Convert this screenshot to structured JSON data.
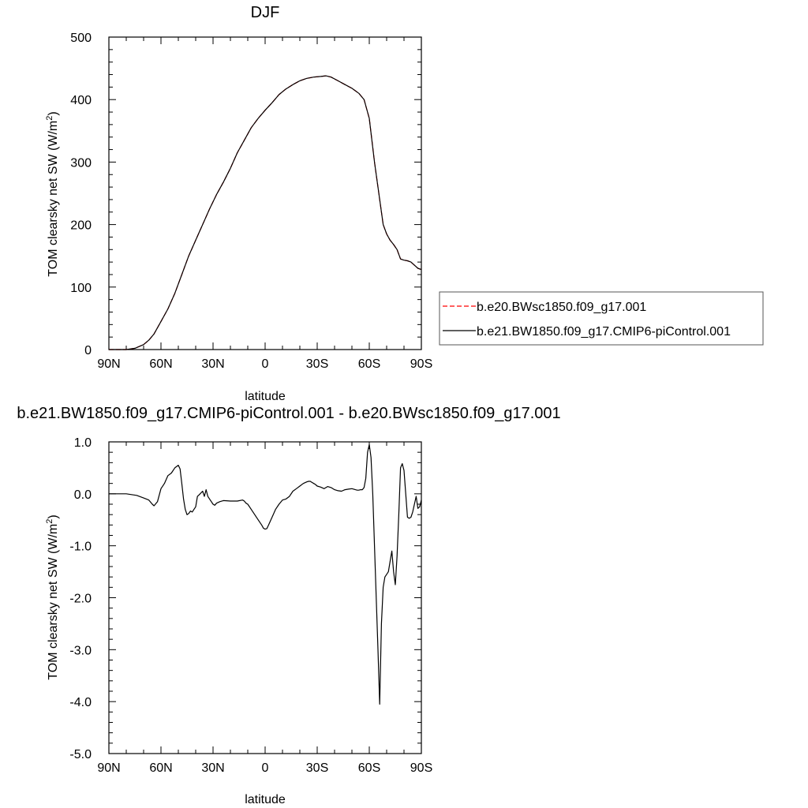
{
  "chart_data": [
    {
      "type": "line",
      "title": "DJF",
      "xlabel": "latitude",
      "ylabel": "TOM clearsky net SW (W/m",
      "ylabel_sup": "2",
      "ylabel_close": ")",
      "xlim": [
        90,
        -90
      ],
      "ylim": [
        0,
        500
      ],
      "x_ticks": [
        90,
        60,
        30,
        0,
        -30,
        -60,
        -90
      ],
      "x_tick_labels": [
        "90N",
        "60N",
        "30N",
        "0",
        "30S",
        "60S",
        "90S"
      ],
      "y_ticks": [
        0,
        100,
        200,
        300,
        400,
        500
      ],
      "y_tick_labels": [
        "0",
        "100",
        "200",
        "300",
        "400",
        "500"
      ],
      "legend_position": "right",
      "series": [
        {
          "name": "b.e20.BWsc1850.f09_g17.001",
          "color": "#ff0000",
          "dashed": true,
          "x": [
            90,
            80,
            75,
            70,
            67,
            64,
            60,
            56,
            52,
            48,
            44,
            40,
            36,
            32,
            28,
            24,
            20,
            16,
            12,
            8,
            4,
            0,
            -4,
            -8,
            -12,
            -16,
            -20,
            -24,
            -28,
            -32,
            -35,
            -38,
            -42,
            -46,
            -50,
            -54,
            -57,
            -60,
            -63,
            -66,
            -68,
            -70,
            -72,
            -74,
            -76,
            -78,
            -80,
            -82,
            -84,
            -86,
            -88,
            -90
          ],
          "y": [
            0,
            0,
            2,
            8,
            15,
            25,
            45,
            65,
            90,
            120,
            150,
            175,
            200,
            225,
            248,
            268,
            290,
            315,
            335,
            355,
            370,
            383,
            395,
            408,
            417,
            424,
            430,
            434,
            436,
            437,
            438,
            436,
            430,
            424,
            418,
            410,
            400,
            370,
            300,
            240,
            200,
            185,
            175,
            168,
            160,
            145,
            143,
            142,
            140,
            135,
            130,
            128
          ]
        },
        {
          "name": "b.e21.BW1850.f09_g17.CMIP6-piControl.001",
          "color": "#000000",
          "dashed": false,
          "x": [
            90,
            80,
            75,
            70,
            67,
            64,
            60,
            56,
            52,
            48,
            44,
            40,
            36,
            32,
            28,
            24,
            20,
            16,
            12,
            8,
            4,
            0,
            -4,
            -8,
            -12,
            -16,
            -20,
            -24,
            -28,
            -32,
            -35,
            -38,
            -42,
            -46,
            -50,
            -54,
            -57,
            -60,
            -63,
            -66,
            -68,
            -70,
            -72,
            -74,
            -76,
            -78,
            -80,
            -82,
            -84,
            -86,
            -88,
            -90
          ],
          "y": [
            0,
            0,
            2,
            8,
            15,
            25,
            45,
            65,
            90,
            120,
            150,
            175,
            200,
            225,
            248,
            268,
            290,
            315,
            335,
            355,
            370,
            383,
            395,
            408,
            417,
            424,
            430,
            434,
            436,
            437,
            438,
            436,
            430,
            424,
            418,
            410,
            400,
            370,
            300,
            240,
            200,
            185,
            175,
            168,
            160,
            145,
            143,
            142,
            140,
            135,
            130,
            128
          ]
        }
      ]
    },
    {
      "type": "line",
      "title": "b.e21.BW1850.f09_g17.CMIP6-piControl.001 - b.e20.BWsc1850.f09_g17.001",
      "xlabel": "latitude",
      "ylabel": "TOM clearsky net SW (W/m",
      "ylabel_sup": "2",
      "ylabel_close": ")",
      "xlim": [
        90,
        -90
      ],
      "ylim": [
        -5.0,
        1.0
      ],
      "x_ticks": [
        90,
        60,
        30,
        0,
        -30,
        -60,
        -90
      ],
      "x_tick_labels": [
        "90N",
        "60N",
        "30N",
        "0",
        "30S",
        "60S",
        "90S"
      ],
      "y_ticks": [
        1.0,
        0.0,
        -1.0,
        -2.0,
        -3.0,
        -4.0,
        -5.0
      ],
      "y_tick_labels": [
        "1.0",
        "0.0",
        "-1.0",
        "-2.0",
        "-3.0",
        "-4.0",
        "-5.0"
      ],
      "series": [
        {
          "color": "#000000",
          "x": [
            90,
            80,
            74,
            70,
            67,
            65,
            64,
            62,
            60,
            58,
            56,
            54,
            52,
            50,
            49,
            48,
            47,
            46,
            45,
            44,
            43,
            42,
            41,
            40,
            39,
            38,
            36,
            35,
            34,
            33,
            32,
            31,
            30,
            29,
            28,
            26,
            24,
            20,
            16,
            13,
            12,
            11,
            10,
            8,
            6,
            4,
            2,
            1,
            0,
            -1,
            -2,
            -4,
            -6,
            -8,
            -10,
            -12,
            -14,
            -16,
            -18,
            -20,
            -22,
            -24,
            -25,
            -26,
            -27,
            -28,
            -29,
            -30,
            -32,
            -34,
            -36,
            -38,
            -40,
            -42,
            -44,
            -46,
            -48,
            -50,
            -51,
            -52,
            -53,
            -54,
            -55,
            -56,
            -57,
            -58,
            -59,
            -60,
            -61,
            -62,
            -63,
            -64,
            -65,
            -66,
            -67,
            -68,
            -69,
            -70,
            -71,
            -72,
            -73,
            -74,
            -75,
            -76,
            -77,
            -78,
            -79,
            -80,
            -81,
            -82,
            -83,
            -84,
            -85,
            -86,
            -87,
            -88,
            -89,
            -90
          ],
          "y": [
            0,
            0,
            -0.03,
            -0.08,
            -0.12,
            -0.2,
            -0.23,
            -0.15,
            0.1,
            0.2,
            0.35,
            0.4,
            0.5,
            0.55,
            0.48,
            0.2,
            -0.1,
            -0.3,
            -0.4,
            -0.38,
            -0.33,
            -0.35,
            -0.3,
            -0.25,
            -0.05,
            -0.02,
            0.05,
            -0.05,
            0.08,
            -0.05,
            -0.1,
            -0.15,
            -0.2,
            -0.22,
            -0.18,
            -0.15,
            -0.13,
            -0.14,
            -0.14,
            -0.12,
            -0.14,
            -0.18,
            -0.2,
            -0.3,
            -0.4,
            -0.5,
            -0.6,
            -0.66,
            -0.68,
            -0.67,
            -0.6,
            -0.45,
            -0.3,
            -0.2,
            -0.12,
            -0.1,
            -0.05,
            0.05,
            0.1,
            0.15,
            0.2,
            0.23,
            0.24,
            0.24,
            0.22,
            0.2,
            0.18,
            0.15,
            0.13,
            0.1,
            0.14,
            0.12,
            0.08,
            0.06,
            0.05,
            0.08,
            0.09,
            0.1,
            0.09,
            0.08,
            0.07,
            0.07,
            0.08,
            0.08,
            0.12,
            0.3,
            0.8,
            0.95,
            0.7,
            0.0,
            -1.0,
            -2.0,
            -3.0,
            -4.05,
            -2.5,
            -1.8,
            -1.6,
            -1.55,
            -1.5,
            -1.3,
            -1.1,
            -1.5,
            -1.75,
            -1.2,
            -0.4,
            0.5,
            0.58,
            0.45,
            0.0,
            -0.45,
            -0.47,
            -0.45,
            -0.35,
            -0.2,
            -0.05,
            -0.28,
            -0.25,
            -0.12
          ]
        }
      ]
    }
  ]
}
